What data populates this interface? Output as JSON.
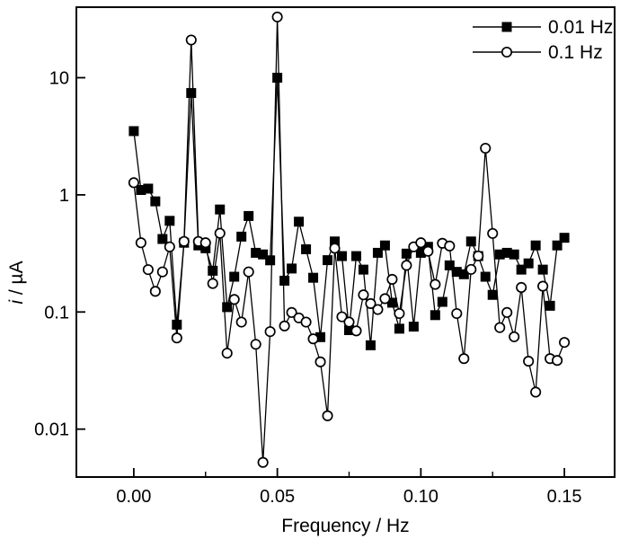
{
  "figure": {
    "background": "#ffffff",
    "frame_color": "#000000"
  },
  "chart_data": {
    "type": "line",
    "scale": {
      "x": "linear",
      "y": "log"
    },
    "title": "",
    "xlabel": "Frequency / Hz",
    "ylabel_italic": "i",
    "ylabel_rest": " / µA",
    "xlim": [
      -0.02,
      0.1675
    ],
    "ylim": [
      0.0039,
      40
    ],
    "grid": false,
    "x_ticks": {
      "major": [
        {
          "v": 0.0,
          "label": "0.00"
        },
        {
          "v": 0.05,
          "label": "0.05"
        },
        {
          "v": 0.1,
          "label": "0.10"
        },
        {
          "v": 0.15,
          "label": "0.15"
        }
      ],
      "minor": [
        0.025,
        0.075,
        0.125
      ]
    },
    "y_ticks": {
      "major": [
        {
          "v": 0.01,
          "label": "0.01"
        },
        {
          "v": 0.1,
          "label": "0.1"
        },
        {
          "v": 1,
          "label": "1"
        },
        {
          "v": 10,
          "label": "10"
        }
      ]
    },
    "x": [
      0.0,
      0.0025,
      0.005,
      0.0075,
      0.01,
      0.0125,
      0.015,
      0.0175,
      0.02,
      0.0225,
      0.025,
      0.0275,
      0.03,
      0.0325,
      0.035,
      0.0375,
      0.04,
      0.0425,
      0.045,
      0.0475,
      0.05,
      0.0525,
      0.055,
      0.0575,
      0.06,
      0.0625,
      0.065,
      0.0675,
      0.07,
      0.0725,
      0.075,
      0.0775,
      0.08,
      0.0825,
      0.085,
      0.0875,
      0.09,
      0.0925,
      0.095,
      0.0975,
      0.1,
      0.1025,
      0.105,
      0.1075,
      0.11,
      0.1125,
      0.115,
      0.1175,
      0.12,
      0.1225,
      0.125,
      0.1275,
      0.13,
      0.1325,
      0.135,
      0.1375,
      0.14,
      0.1425,
      0.145,
      0.1475,
      0.15
    ],
    "series": [
      {
        "name": "0.01 Hz",
        "marker": "square",
        "color": "#000000",
        "values": [
          3.5,
          1.1,
          1.13,
          0.88,
          0.42,
          0.6,
          0.078,
          0.39,
          7.4,
          0.37,
          0.35,
          0.225,
          0.75,
          0.11,
          0.2,
          0.44,
          0.66,
          0.32,
          0.31,
          0.276,
          10.0,
          0.185,
          0.235,
          0.59,
          0.343,
          0.196,
          0.061,
          0.277,
          0.4,
          0.3,
          0.07,
          0.3,
          0.23,
          0.052,
          0.32,
          0.37,
          0.12,
          0.072,
          0.315,
          0.075,
          0.32,
          0.36,
          0.094,
          0.122,
          0.25,
          0.22,
          0.21,
          0.4,
          0.3,
          0.2,
          0.14,
          0.31,
          0.32,
          0.31,
          0.23,
          0.26,
          0.37,
          0.23,
          0.113,
          0.37,
          0.43
        ]
      },
      {
        "name": "0.1 Hz",
        "marker": "circle",
        "color": "#000000",
        "values": [
          1.27,
          0.39,
          0.23,
          0.15,
          0.22,
          0.36,
          0.06,
          0.4,
          21.0,
          0.4,
          0.39,
          0.175,
          0.47,
          0.0445,
          0.128,
          0.082,
          0.22,
          0.053,
          0.0052,
          0.068,
          33.0,
          0.076,
          0.099,
          0.089,
          0.082,
          0.059,
          0.0375,
          0.013,
          0.35,
          0.091,
          0.082,
          0.069,
          0.14,
          0.118,
          0.105,
          0.13,
          0.19,
          0.097,
          0.25,
          0.36,
          0.39,
          0.33,
          0.172,
          0.386,
          0.366,
          0.097,
          0.04,
          0.231,
          0.301,
          2.5,
          0.468,
          0.0736,
          0.099,
          0.0614,
          0.162,
          0.038,
          0.0207,
          0.166,
          0.04,
          0.0386,
          0.055
        ]
      }
    ],
    "legend": {
      "position": "top-right",
      "entries": [
        "0.01 Hz",
        "0.1 Hz"
      ]
    }
  }
}
